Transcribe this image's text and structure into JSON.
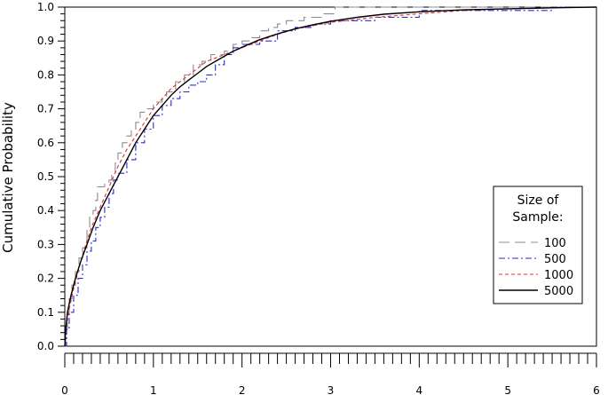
{
  "chart_data": {
    "type": "line",
    "title": "",
    "xlabel": "",
    "ylabel": "Cumulative Probability",
    "xlim": [
      0,
      6
    ],
    "ylim": [
      0,
      1
    ],
    "x_ticks": [
      "0",
      "1",
      "2",
      "3",
      "4",
      "5",
      "6"
    ],
    "y_ticks": [
      "0.0",
      "0.1",
      "0.2",
      "0.3",
      "0.4",
      "0.5",
      "0.6",
      "0.7",
      "0.8",
      "0.9",
      "1.0"
    ],
    "grid": false,
    "legend": {
      "title_lines": [
        "Size of",
        "Sample:"
      ],
      "placement": "right"
    },
    "series": [
      {
        "name": "100",
        "color": "#8c8c8c",
        "dash": "long-dash",
        "step": true,
        "points": [
          [
            0,
            0
          ],
          [
            0.01,
            0.05
          ],
          [
            0.03,
            0.1
          ],
          [
            0.05,
            0.14
          ],
          [
            0.08,
            0.18
          ],
          [
            0.12,
            0.22
          ],
          [
            0.16,
            0.26
          ],
          [
            0.2,
            0.29
          ],
          [
            0.25,
            0.35
          ],
          [
            0.28,
            0.38
          ],
          [
            0.32,
            0.4
          ],
          [
            0.35,
            0.43
          ],
          [
            0.37,
            0.47
          ],
          [
            0.45,
            0.48
          ],
          [
            0.5,
            0.49
          ],
          [
            0.53,
            0.51
          ],
          [
            0.57,
            0.54
          ],
          [
            0.6,
            0.57
          ],
          [
            0.65,
            0.6
          ],
          [
            0.7,
            0.62
          ],
          [
            0.75,
            0.64
          ],
          [
            0.8,
            0.66
          ],
          [
            0.85,
            0.69
          ],
          [
            0.9,
            0.7
          ],
          [
            0.95,
            0.7
          ],
          [
            1.0,
            0.72
          ],
          [
            1.1,
            0.73
          ],
          [
            1.15,
            0.75
          ],
          [
            1.25,
            0.78
          ],
          [
            1.35,
            0.8
          ],
          [
            1.45,
            0.83
          ],
          [
            1.55,
            0.84
          ],
          [
            1.65,
            0.86
          ],
          [
            1.8,
            0.87
          ],
          [
            1.9,
            0.89
          ],
          [
            2.0,
            0.9
          ],
          [
            2.1,
            0.91
          ],
          [
            2.2,
            0.93
          ],
          [
            2.3,
            0.94
          ],
          [
            2.4,
            0.95
          ],
          [
            2.5,
            0.96
          ],
          [
            2.7,
            0.97
          ],
          [
            2.9,
            0.98
          ],
          [
            3.05,
            1.0
          ],
          [
            6.0,
            1.0
          ]
        ]
      },
      {
        "name": "500",
        "color": "#2a2ad6",
        "dash": "dash-dot",
        "step": true,
        "points": [
          [
            0,
            0
          ],
          [
            0.02,
            0.05
          ],
          [
            0.05,
            0.1
          ],
          [
            0.1,
            0.15
          ],
          [
            0.15,
            0.2
          ],
          [
            0.2,
            0.24
          ],
          [
            0.25,
            0.28
          ],
          [
            0.3,
            0.31
          ],
          [
            0.35,
            0.35
          ],
          [
            0.4,
            0.38
          ],
          [
            0.45,
            0.41
          ],
          [
            0.5,
            0.45
          ],
          [
            0.55,
            0.49
          ],
          [
            0.6,
            0.51
          ],
          [
            0.7,
            0.55
          ],
          [
            0.8,
            0.6
          ],
          [
            0.9,
            0.64
          ],
          [
            1.0,
            0.68
          ],
          [
            1.1,
            0.71
          ],
          [
            1.2,
            0.73
          ],
          [
            1.3,
            0.75
          ],
          [
            1.4,
            0.77
          ],
          [
            1.5,
            0.78
          ],
          [
            1.6,
            0.8
          ],
          [
            1.7,
            0.83
          ],
          [
            1.8,
            0.86
          ],
          [
            1.9,
            0.88
          ],
          [
            2.0,
            0.89
          ],
          [
            2.2,
            0.9
          ],
          [
            2.4,
            0.93
          ],
          [
            2.6,
            0.94
          ],
          [
            2.8,
            0.95
          ],
          [
            3.0,
            0.96
          ],
          [
            3.5,
            0.97
          ],
          [
            4.0,
            0.99
          ],
          [
            4.5,
            0.99
          ],
          [
            5.0,
            0.99
          ],
          [
            5.5,
            1.0
          ],
          [
            6.0,
            1.0
          ]
        ]
      },
      {
        "name": "1000",
        "color": "#e03030",
        "dash": "short-dash",
        "step": false,
        "points": [
          [
            0,
            0
          ],
          [
            0.02,
            0.06
          ],
          [
            0.05,
            0.11
          ],
          [
            0.1,
            0.17
          ],
          [
            0.15,
            0.22
          ],
          [
            0.2,
            0.27
          ],
          [
            0.3,
            0.35
          ],
          [
            0.4,
            0.41
          ],
          [
            0.5,
            0.47
          ],
          [
            0.6,
            0.53
          ],
          [
            0.7,
            0.58
          ],
          [
            0.8,
            0.62
          ],
          [
            0.9,
            0.66
          ],
          [
            1.0,
            0.7
          ],
          [
            1.1,
            0.73
          ],
          [
            1.2,
            0.76
          ],
          [
            1.3,
            0.78
          ],
          [
            1.4,
            0.8
          ],
          [
            1.5,
            0.82
          ],
          [
            1.6,
            0.84
          ],
          [
            1.7,
            0.85
          ],
          [
            1.8,
            0.86
          ],
          [
            1.9,
            0.87
          ],
          [
            2.0,
            0.88
          ],
          [
            2.2,
            0.9
          ],
          [
            2.4,
            0.92
          ],
          [
            2.6,
            0.935
          ],
          [
            2.8,
            0.945
          ],
          [
            3.0,
            0.955
          ],
          [
            3.5,
            0.97
          ],
          [
            4.0,
            0.98
          ],
          [
            4.5,
            0.99
          ],
          [
            5.0,
            0.995
          ],
          [
            5.5,
            0.998
          ],
          [
            6.0,
            1.0
          ]
        ]
      },
      {
        "name": "5000",
        "color": "#000000",
        "dash": "solid",
        "step": false,
        "points": [
          [
            0,
            0
          ],
          [
            0.01,
            0.05
          ],
          [
            0.03,
            0.1
          ],
          [
            0.07,
            0.15
          ],
          [
            0.12,
            0.2
          ],
          [
            0.18,
            0.25
          ],
          [
            0.25,
            0.3
          ],
          [
            0.32,
            0.35
          ],
          [
            0.4,
            0.4
          ],
          [
            0.5,
            0.45
          ],
          [
            0.6,
            0.5
          ],
          [
            0.7,
            0.55
          ],
          [
            0.8,
            0.6
          ],
          [
            0.9,
            0.64
          ],
          [
            1.0,
            0.68
          ],
          [
            1.1,
            0.71
          ],
          [
            1.2,
            0.74
          ],
          [
            1.3,
            0.765
          ],
          [
            1.4,
            0.785
          ],
          [
            1.5,
            0.805
          ],
          [
            1.6,
            0.825
          ],
          [
            1.7,
            0.84
          ],
          [
            1.8,
            0.855
          ],
          [
            1.9,
            0.87
          ],
          [
            2.0,
            0.882
          ],
          [
            2.2,
            0.904
          ],
          [
            2.4,
            0.921
          ],
          [
            2.6,
            0.936
          ],
          [
            2.8,
            0.948
          ],
          [
            3.0,
            0.958
          ],
          [
            3.3,
            0.97
          ],
          [
            3.6,
            0.979
          ],
          [
            4.0,
            0.986
          ],
          [
            4.5,
            0.992
          ],
          [
            5.0,
            0.995
          ],
          [
            5.5,
            0.998
          ],
          [
            6.0,
            1.0
          ]
        ]
      }
    ]
  }
}
